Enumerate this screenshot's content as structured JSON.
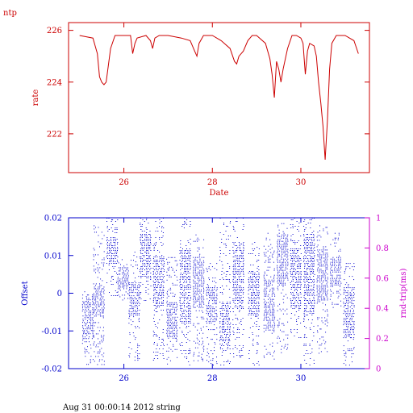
{
  "chart_data": [
    {
      "type": "line",
      "title": "ntp",
      "xlabel": "Date",
      "ylabel": "rate",
      "xlim": [
        24.75,
        31.55
      ],
      "ylim": [
        220.5,
        226.3
      ],
      "xticks": [
        26,
        28,
        30
      ],
      "xticklabels": [
        "26",
        "28",
        "30"
      ],
      "yticks": [
        222,
        224,
        226
      ],
      "yticklabels": [
        "222",
        "224",
        "226"
      ],
      "color": "#cc0000",
      "series": [
        {
          "x": [
            25.0,
            25.3,
            25.4,
            25.45,
            25.5,
            25.55,
            25.6,
            25.7,
            25.8,
            26.0,
            26.15,
            26.2,
            26.25,
            26.3,
            26.5,
            26.6,
            26.65,
            26.7,
            26.8,
            27.0,
            27.3,
            27.5,
            27.6,
            27.65,
            27.7,
            27.8,
            28.0,
            28.2,
            28.4,
            28.5,
            28.55,
            28.6,
            28.7,
            28.8,
            28.9,
            29.0,
            29.2,
            29.3,
            29.35,
            29.4,
            29.45,
            29.5,
            29.55,
            29.6,
            29.7,
            29.8,
            29.9,
            30.0,
            30.05,
            30.1,
            30.15,
            30.2,
            30.3,
            30.35,
            30.4,
            30.45,
            30.5,
            30.55,
            30.6,
            30.65,
            30.7,
            30.8,
            31.0,
            31.2,
            31.3
          ],
          "y": [
            225.8,
            225.7,
            225.1,
            224.2,
            224.0,
            223.9,
            224.0,
            225.3,
            225.8,
            225.8,
            225.8,
            225.1,
            225.5,
            225.7,
            225.8,
            225.6,
            225.3,
            225.7,
            225.8,
            225.8,
            225.7,
            225.6,
            225.2,
            225.0,
            225.5,
            225.8,
            225.8,
            225.6,
            225.3,
            224.8,
            224.7,
            225.0,
            225.2,
            225.6,
            225.8,
            225.8,
            225.5,
            224.9,
            224.3,
            223.4,
            224.8,
            224.5,
            224.0,
            224.5,
            225.3,
            225.8,
            225.8,
            225.7,
            225.5,
            224.3,
            225.2,
            225.5,
            225.4,
            225.0,
            224.0,
            223.2,
            222.3,
            221.0,
            222.5,
            224.5,
            225.5,
            225.8,
            225.8,
            225.6,
            225.1
          ]
        }
      ]
    },
    {
      "type": "scatter",
      "xlabel": "",
      "ylabel": "Offset",
      "y2label": "rnd-trip(ms)",
      "xlim": [
        24.75,
        31.55
      ],
      "ylim": [
        -0.02,
        0.02
      ],
      "y2lim": [
        0,
        1
      ],
      "xticks": [
        26,
        28,
        30
      ],
      "xticklabels": [
        "26",
        "28",
        "30"
      ],
      "yticks": [
        -0.02,
        -0.01,
        0,
        0.01,
        0.02
      ],
      "yticklabels": [
        "-0.02",
        "-0.01",
        "0",
        "0.01",
        "0.02"
      ],
      "y2ticks": [
        0,
        0.2,
        0.4,
        0.6,
        0.8,
        1
      ],
      "y2ticklabels": [
        "0",
        "0.2",
        "0.4",
        "0.6",
        "0.8",
        "1"
      ],
      "color": "#0000cc",
      "y2color": "#cc00cc",
      "columns": [
        {
          "x": 25.2,
          "lo": -0.0195,
          "hi": 0.0005,
          "dense_lo": -0.012,
          "dense_hi": -0.001
        },
        {
          "x": 25.45,
          "lo": -0.019,
          "hi": 0.018,
          "dense_lo": -0.006,
          "dense_hi": 0.002
        },
        {
          "x": 25.75,
          "lo": -0.002,
          "hi": 0.02,
          "dense_lo": 0.008,
          "dense_hi": 0.015
        },
        {
          "x": 26.0,
          "lo": -0.002,
          "hi": 0.009,
          "dense_lo": 0.001,
          "dense_hi": 0.007
        },
        {
          "x": 26.25,
          "lo": -0.018,
          "hi": 0.011,
          "dense_lo": -0.006,
          "dense_hi": 0.003
        },
        {
          "x": 26.5,
          "lo": -0.002,
          "hi": 0.02,
          "dense_lo": 0.004,
          "dense_hi": 0.016
        },
        {
          "x": 26.8,
          "lo": -0.018,
          "hi": 0.02,
          "dense_lo": -0.005,
          "dense_hi": 0.01
        },
        {
          "x": 27.1,
          "lo": -0.019,
          "hi": 0.01,
          "dense_lo": -0.012,
          "dense_hi": -0.002
        },
        {
          "x": 27.4,
          "lo": -0.019,
          "hi": 0.02,
          "dense_lo": -0.008,
          "dense_hi": 0.012
        },
        {
          "x": 27.7,
          "lo": -0.018,
          "hi": 0.016,
          "dense_lo": -0.004,
          "dense_hi": 0.01
        },
        {
          "x": 28.0,
          "lo": -0.019,
          "hi": 0.008,
          "dense_lo": -0.008,
          "dense_hi": 0.002
        },
        {
          "x": 28.3,
          "lo": -0.019,
          "hi": 0.02,
          "dense_lo": -0.014,
          "dense_hi": -0.002
        },
        {
          "x": 28.6,
          "lo": -0.017,
          "hi": 0.02,
          "dense_lo": -0.004,
          "dense_hi": 0.014
        },
        {
          "x": 28.95,
          "lo": -0.019,
          "hi": 0.014,
          "dense_lo": -0.006,
          "dense_hi": 0.006
        },
        {
          "x": 29.3,
          "lo": -0.018,
          "hi": 0.016,
          "dense_lo": -0.01,
          "dense_hi": 0.004
        },
        {
          "x": 29.6,
          "lo": -0.016,
          "hi": 0.019,
          "dense_lo": 0.002,
          "dense_hi": 0.016
        },
        {
          "x": 29.9,
          "lo": -0.012,
          "hi": 0.02,
          "dense_lo": -0.004,
          "dense_hi": 0.012
        },
        {
          "x": 30.2,
          "lo": -0.019,
          "hi": 0.02,
          "dense_lo": -0.006,
          "dense_hi": 0.016
        },
        {
          "x": 30.5,
          "lo": -0.016,
          "hi": 0.018,
          "dense_lo": -0.002,
          "dense_hi": 0.012
        },
        {
          "x": 30.8,
          "lo": -0.004,
          "hi": 0.016,
          "dense_lo": 0.002,
          "dense_hi": 0.01
        },
        {
          "x": 31.1,
          "lo": -0.019,
          "hi": 0.008,
          "dense_lo": -0.012,
          "dense_hi": 0.002
        }
      ]
    }
  ],
  "footer": {
    "text": "Aug 31 00:00:14 2012 string"
  }
}
